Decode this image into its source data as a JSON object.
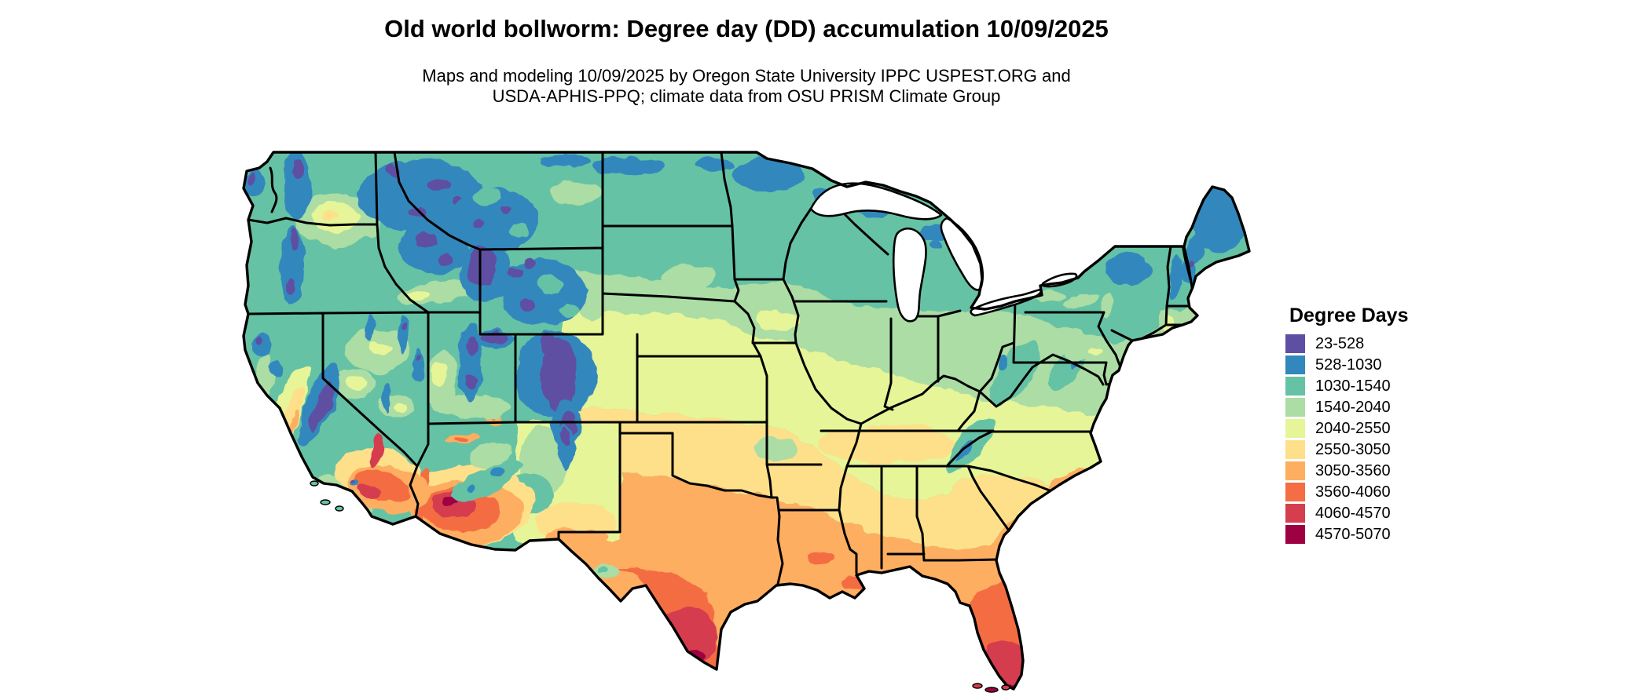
{
  "header": {
    "title": "Old world bollworm: Degree day (DD) accumulation 10/09/2025",
    "subtitle_line1": "Maps and modeling 10/09/2025 by Oregon State University IPPC USPEST.ORG and",
    "subtitle_line2": "USDA-APHIS-PPQ; climate data from OSU PRISM Climate Group"
  },
  "legend": {
    "title": "Degree Days",
    "items": [
      {
        "range": "23-528",
        "color": "#5e4fa2"
      },
      {
        "range": "528-1030",
        "color": "#3288bd"
      },
      {
        "range": "1030-1540",
        "color": "#66c2a5"
      },
      {
        "range": "1540-2040",
        "color": "#abdda4"
      },
      {
        "range": "2040-2550",
        "color": "#e6f598"
      },
      {
        "range": "2550-3050",
        "color": "#fee08b"
      },
      {
        "range": "3050-3560",
        "color": "#fdae61"
      },
      {
        "range": "3560-4060",
        "color": "#f46d43"
      },
      {
        "range": "4060-4570",
        "color": "#d53e4f"
      },
      {
        "range": "4570-5070",
        "color": "#9e0142"
      }
    ]
  },
  "map": {
    "label": "Conterminous United States map colored by accumulated degree days"
  }
}
